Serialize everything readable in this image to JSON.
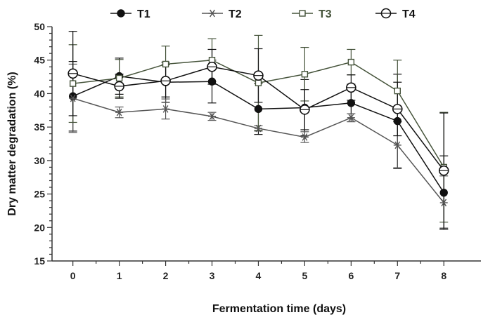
{
  "chart_data": {
    "type": "line",
    "title": "",
    "xlabel": "Fermentation time (days)",
    "ylabel": "Dry matter degradation (%)",
    "x": [
      0,
      1,
      2,
      3,
      4,
      5,
      6,
      7,
      8
    ],
    "xticks": [
      "0",
      "1",
      "2",
      "3",
      "4",
      "5",
      "6",
      "7",
      "8"
    ],
    "xlim": [
      -0.45,
      8.8
    ],
    "ylim": [
      15,
      50
    ],
    "yticks": [
      15,
      20,
      25,
      30,
      35,
      40,
      45,
      50
    ],
    "grid": false,
    "legend_position": "top",
    "series": [
      {
        "name": "T1",
        "marker": "filled-circle",
        "color": "#111111",
        "label_color": "#111111",
        "values": [
          39.6,
          42.6,
          41.7,
          41.8,
          37.7,
          37.9,
          38.6,
          35.9,
          25.2
        ],
        "errors": [
          5.2,
          2.7,
          3.0,
          3.2,
          3.8,
          4.2,
          2.8,
          7.0,
          5.5
        ]
      },
      {
        "name": "T2",
        "marker": "asterisk",
        "color": "#555555",
        "label_color": "#111111",
        "values": [
          39.3,
          37.2,
          37.7,
          36.6,
          34.8,
          33.5,
          36.4,
          32.3,
          23.7
        ],
        "errors": [
          5.1,
          0.8,
          1.5,
          0.6,
          0.4,
          0.8,
          0.6,
          3.5,
          4.0
        ]
      },
      {
        "name": "T3",
        "marker": "open-square",
        "color": "#45533a",
        "label_color": "#45533a",
        "values": [
          41.5,
          42.3,
          44.4,
          45.0,
          41.6,
          42.9,
          44.7,
          40.4,
          29.0
        ],
        "errors": [
          5.8,
          2.8,
          2.7,
          3.2,
          7.1,
          4.0,
          1.9,
          4.6,
          8.2
        ]
      },
      {
        "name": "T4",
        "marker": "open-circle",
        "color": "#111111",
        "label_color": "#111111",
        "values": [
          43.0,
          41.1,
          41.9,
          44.0,
          42.7,
          37.6,
          40.9,
          37.7,
          28.5
        ],
        "errors": [
          6.3,
          1.8,
          2.4,
          2.6,
          4.0,
          3.0,
          1.9,
          4.0,
          8.6
        ]
      }
    ]
  }
}
